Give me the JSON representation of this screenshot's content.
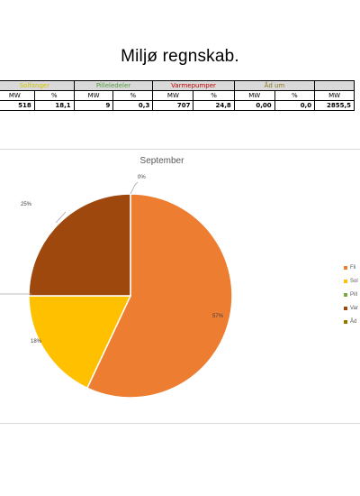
{
  "document": {
    "title": "Miljø regnskab."
  },
  "summary_table": {
    "groups": [
      {
        "label": "Solfanger",
        "color": "#d4c400"
      },
      {
        "label": "Pilleledeler",
        "color": "#4e9a3a"
      },
      {
        "label": "Varmepumper",
        "color": "#c00000"
      },
      {
        "label": "Åd um",
        "color": "#8a7a1a"
      },
      {
        "label": ""
      }
    ],
    "units": [
      "MW",
      "%",
      "MW",
      "%",
      "MW",
      "%",
      "MW",
      "%",
      "MW"
    ],
    "values": [
      "518",
      "18,1",
      "9",
      "0,3",
      "707",
      "24,8",
      "0,00",
      "0,0",
      "2855,5"
    ]
  },
  "chart_data": {
    "type": "pie",
    "title": "September",
    "slices": [
      {
        "name": "Fli",
        "value": 57,
        "label": "57%",
        "color": "#ed7d31"
      },
      {
        "name": "Sol",
        "value": 18,
        "label": "18%",
        "color": "#ffc000"
      },
      {
        "name": "Pill",
        "value": 0,
        "label": "",
        "color": "#70ad47"
      },
      {
        "name": "Var",
        "value": 25,
        "label": "25%",
        "color": "#9e480e"
      },
      {
        "name": "Åd",
        "value": 0,
        "label": "0%",
        "color": "#997300"
      }
    ],
    "legend_position": "right"
  }
}
